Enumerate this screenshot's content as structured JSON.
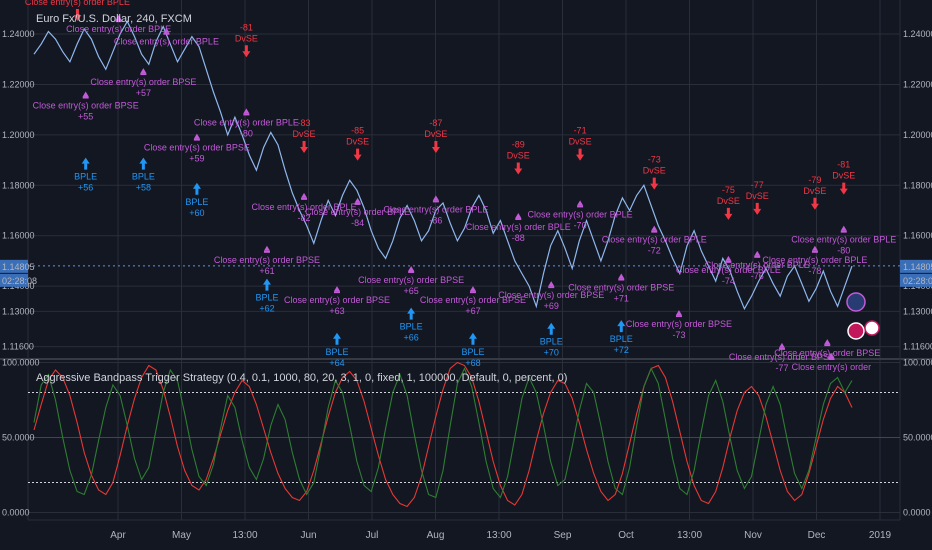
{
  "header": {
    "title": "Euro Fx/U.S. Dollar, 240, FXCM"
  },
  "indicator": {
    "title": "Aggressive Bandpass Trigger Strategy (0.4, 0.1, 1000, 80, 20, 3, 1, 0, fixed, 1, 100000, Default, 0, percent, 0)"
  },
  "colors": {
    "background": "#131722",
    "grid": "#2a2e39",
    "price": "#8fb7ee",
    "long": "#2196f3",
    "short_entry": "#f23645",
    "close": "#c35ad8",
    "trigger_red": "#e53935",
    "trigger_green": "#2e7d32",
    "level_line": "#2d2dff",
    "label_bg": "#3a6fb8"
  },
  "chart_data": [
    {
      "type": "line",
      "title": "Euro Fx/U.S. Dollar, 240, FXCM",
      "x_axis_labels": [
        "Apr",
        "May",
        "13:00",
        "Jun",
        "Jul",
        "Aug",
        "13:00",
        "Sep",
        "Oct",
        "13:00",
        "Nov",
        "Dec",
        "2019"
      ],
      "y_ticks": [
        "1.24000",
        "1.22000",
        "1.20000",
        "1.18000",
        "1.16000",
        "1.14000",
        "1.13000",
        "1.11600"
      ],
      "ylim": [
        1.1115,
        1.2535
      ],
      "current_price_label": "1.14805",
      "current_price": 1.14805,
      "countdown_label": "02:28:08",
      "series": [
        {
          "values": [
            1.232,
            1.236,
            1.241,
            1.238,
            1.233,
            1.229,
            1.236,
            1.242,
            1.238,
            1.231,
            1.226,
            1.233,
            1.24,
            1.245,
            1.239,
            1.232,
            1.228,
            1.237,
            1.243,
            1.236,
            1.229,
            1.234,
            1.239,
            1.235,
            1.226,
            1.217,
            1.209,
            1.2,
            1.207,
            1.2,
            1.192,
            1.186,
            1.195,
            1.201,
            1.196,
            1.186,
            1.177,
            1.17,
            1.164,
            1.157,
            1.166,
            1.174,
            1.168,
            1.176,
            1.182,
            1.178,
            1.171,
            1.162,
            1.155,
            1.151,
            1.158,
            1.167,
            1.172,
            1.166,
            1.158,
            1.162,
            1.17,
            1.173,
            1.165,
            1.158,
            1.163,
            1.171,
            1.176,
            1.17,
            1.161,
            1.166,
            1.158,
            1.15,
            1.145,
            1.14,
            1.132,
            1.145,
            1.156,
            1.162,
            1.155,
            1.147,
            1.158,
            1.166,
            1.158,
            1.15,
            1.158,
            1.168,
            1.175,
            1.17,
            1.176,
            1.18,
            1.172,
            1.164,
            1.158,
            1.151,
            1.145,
            1.156,
            1.162,
            1.154,
            1.148,
            1.142,
            1.151,
            1.146,
            1.138,
            1.131,
            1.136,
            1.142,
            1.147,
            1.141,
            1.136,
            1.144,
            1.148,
            1.141,
            1.134,
            1.139,
            1.146,
            1.138,
            1.132,
            1.14,
            1.148
          ]
        }
      ],
      "signals": [
        {
          "kind": "short",
          "text": "Close entry(s) order BPLE",
          "num": "",
          "x": 0.06,
          "y": 1.2515
        },
        {
          "kind": "close",
          "text": "Close entry(s) order BPLE",
          "num": "",
          "x": 0.11,
          "y": 1.2475
        },
        {
          "kind": "close",
          "text": "Close entry(s) order BPSE",
          "num": "+55",
          "x": 0.07,
          "y": 1.2172
        },
        {
          "kind": "long",
          "text": "BPLE",
          "num": "+56",
          "x": 0.07,
          "y": 1.191
        },
        {
          "kind": "close",
          "text": "Close entry(s) order BPSE",
          "num": "+57",
          "x": 0.14,
          "y": 1.2265
        },
        {
          "kind": "long",
          "text": "BPLE",
          "num": "+58",
          "x": 0.14,
          "y": 1.191
        },
        {
          "kind": "close",
          "text": "Close entry(s) order BPLE",
          "num": "",
          "x": 0.168,
          "y": 1.2425
        },
        {
          "kind": "close",
          "text": "Close entry(s) order BPSE",
          "num": "+59",
          "x": 0.205,
          "y": 1.2005
        },
        {
          "kind": "long",
          "text": "BPLE",
          "num": "+60",
          "x": 0.205,
          "y": 1.181
        },
        {
          "kind": "short",
          "text": "DvSE",
          "num": "-81",
          "x": 0.265,
          "y": 1.2415
        },
        {
          "kind": "close",
          "text": "Close entry(s) order BPLE",
          "num": "-80",
          "x": 0.265,
          "y": 1.2105
        },
        {
          "kind": "short",
          "text": "DvSE",
          "num": "-83",
          "x": 0.335,
          "y": 1.2035
        },
        {
          "kind": "close",
          "text": "Close entry(s) order BPLE",
          "num": "-82",
          "x": 0.335,
          "y": 1.177
        },
        {
          "kind": "close",
          "text": "Close entry(s) order BPSE",
          "num": "+61",
          "x": 0.29,
          "y": 1.156
        },
        {
          "kind": "long",
          "text": "BPLE",
          "num": "+62",
          "x": 0.29,
          "y": 1.143
        },
        {
          "kind": "short",
          "text": "DvSE",
          "num": "-85",
          "x": 0.4,
          "y": 1.2005
        },
        {
          "kind": "close",
          "text": "Close entry(s) order BPLE",
          "num": "-84",
          "x": 0.4,
          "y": 1.175
        },
        {
          "kind": "close",
          "text": "Close entry(s) order BPSE",
          "num": "+63",
          "x": 0.375,
          "y": 1.14
        },
        {
          "kind": "long",
          "text": "BPLE",
          "num": "+64",
          "x": 0.375,
          "y": 1.1215
        },
        {
          "kind": "short",
          "text": "DvSE",
          "num": "-87",
          "x": 0.495,
          "y": 1.2035
        },
        {
          "kind": "close",
          "text": "Close entry(s) order BPLE",
          "num": "-86",
          "x": 0.495,
          "y": 1.176
        },
        {
          "kind": "close",
          "text": "Close entry(s) order BPSE",
          "num": "+65",
          "x": 0.465,
          "y": 1.148
        },
        {
          "kind": "long",
          "text": "BPLE",
          "num": "+66",
          "x": 0.465,
          "y": 1.1315
        },
        {
          "kind": "short",
          "text": "DvSE",
          "num": "-89",
          "x": 0.595,
          "y": 1.195
        },
        {
          "kind": "close",
          "text": "Close entry(s) order BPLE",
          "num": "-88",
          "x": 0.595,
          "y": 1.169
        },
        {
          "kind": "close",
          "text": "Close entry(s) order BPSE",
          "num": "+67",
          "x": 0.54,
          "y": 1.14
        },
        {
          "kind": "long",
          "text": "BPLE",
          "num": "+68",
          "x": 0.54,
          "y": 1.1215
        },
        {
          "kind": "short",
          "text": "DvSE",
          "num": "-71",
          "x": 0.67,
          "y": 1.2005
        },
        {
          "kind": "close",
          "text": "Close entry(s) order BPLE",
          "num": "-70",
          "x": 0.67,
          "y": 1.174
        },
        {
          "kind": "close",
          "text": "Close entry(s) order BPSE",
          "num": "+69",
          "x": 0.635,
          "y": 1.142
        },
        {
          "kind": "long",
          "text": "BPLE",
          "num": "+70",
          "x": 0.635,
          "y": 1.1255
        },
        {
          "kind": "short",
          "text": "DvSE",
          "num": "-73",
          "x": 0.76,
          "y": 1.189
        },
        {
          "kind": "close",
          "text": "Close entry(s) order BPLE",
          "num": "-72",
          "x": 0.76,
          "y": 1.164
        },
        {
          "kind": "close",
          "text": "Close entry(s) order BPSE",
          "num": "+71",
          "x": 0.72,
          "y": 1.145
        },
        {
          "kind": "long",
          "text": "BPLE",
          "num": "+72",
          "x": 0.72,
          "y": 1.1265
        },
        {
          "kind": "short",
          "text": "DvSE",
          "num": "-75",
          "x": 0.85,
          "y": 1.177
        },
        {
          "kind": "close",
          "text": "Close entry(s) order BPLE",
          "num": "-74",
          "x": 0.85,
          "y": 1.152
        },
        {
          "kind": "close",
          "text": "Close entry(s) order BPSE",
          "num": "-73",
          "x": 0.79,
          "y": 1.1305
        },
        {
          "kind": "short",
          "text": "DvSE",
          "num": "-77",
          "x": 0.885,
          "y": 1.179
        },
        {
          "kind": "close",
          "text": "Close entry(s) order BPLE",
          "num": "-76",
          "x": 0.885,
          "y": 1.154
        },
        {
          "kind": "close",
          "text": "Close entry(s) order BPSE",
          "num": "-77",
          "x": 0.915,
          "y": 1.1175
        },
        {
          "kind": "short",
          "text": "DvSE",
          "num": "-79",
          "x": 0.955,
          "y": 1.181
        },
        {
          "kind": "close",
          "text": "Close entry(s) order BPLE",
          "num": "-78",
          "x": 0.955,
          "y": 1.156
        },
        {
          "kind": "short",
          "text": "DvSE",
          "num": "-81",
          "x": 0.99,
          "y": 1.187
        },
        {
          "kind": "close",
          "text": "Close entry(s) order BPLE",
          "num": "-80",
          "x": 0.99,
          "y": 1.164
        },
        {
          "kind": "close",
          "text": "Close entry(s) order BPSE",
          "num": "",
          "x": 0.97,
          "y": 1.119
        },
        {
          "kind": "close",
          "text": "Close entry(s) order",
          "num": "",
          "x": 0.975,
          "y": 1.1135
        }
      ]
    },
    {
      "type": "line",
      "title": "Aggressive Bandpass Trigger Strategy (0.4, 0.1, 1000, 80, 20, 3, 1, 0, fixed, 1, 100000, Default, 0, percent, 0)",
      "y_ticks": [
        "100.0000",
        "50.0000",
        "0.0000"
      ],
      "ylim": [
        -5,
        101
      ],
      "levels": [
        80,
        50,
        20
      ],
      "series": [
        {
          "values": [
            55,
            72,
            88,
            95,
            90,
            78,
            60,
            40,
            25,
            15,
            12,
            20,
            38,
            58,
            76,
            90,
            98,
            95,
            82,
            64,
            44,
            28,
            18,
            15,
            22,
            36,
            52,
            68,
            80,
            88,
            84,
            72,
            56,
            40,
            26,
            16,
            10,
            8,
            14,
            28,
            46,
            64,
            80,
            90,
            94,
            88,
            74,
            56,
            38,
            22,
            12,
            6,
            4,
            10,
            24,
            44,
            64,
            82,
            96,
            100,
            98,
            90,
            74,
            54,
            34,
            18,
            8,
            5,
            12,
            28,
            48,
            66,
            80,
            88,
            86,
            76,
            60,
            42,
            26,
            14,
            8,
            12,
            26,
            46,
            66,
            84,
            96,
            98,
            90,
            74,
            54,
            34,
            18,
            8,
            6,
            14,
            30,
            50,
            68,
            80,
            84,
            78,
            64,
            46,
            28,
            14,
            8,
            12,
            26,
            44,
            62,
            76,
            84,
            80,
            70
          ]
        },
        {
          "values": [
            60,
            85,
            92,
            75,
            50,
            28,
            14,
            12,
            25,
            48,
            70,
            85,
            78,
            58,
            36,
            22,
            30,
            55,
            80,
            95,
            88,
            66,
            42,
            24,
            18,
            32,
            56,
            78,
            70,
            48,
            30,
            22,
            36,
            58,
            72,
            62,
            40,
            22,
            12,
            20,
            44,
            70,
            88,
            80,
            58,
            34,
            18,
            14,
            30,
            56,
            80,
            92,
            78,
            52,
            28,
            12,
            10,
            28,
            58,
            86,
            96,
            84,
            60,
            34,
            16,
            10,
            24,
            50,
            76,
            90,
            80,
            58,
            34,
            18,
            22,
            44,
            68,
            86,
            80,
            58,
            34,
            16,
            12,
            30,
            58,
            84,
            96,
            86,
            62,
            36,
            16,
            12,
            28,
            54,
            78,
            88,
            74,
            50,
            28,
            16,
            24,
            48,
            72,
            84,
            72,
            48,
            26,
            16,
            28,
            50,
            72,
            86,
            90,
            80,
            88
          ]
        }
      ]
    }
  ]
}
